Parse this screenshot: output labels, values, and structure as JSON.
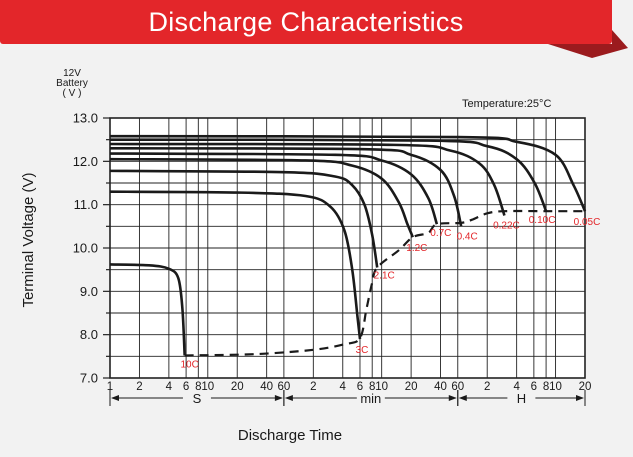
{
  "header": {
    "title": "Discharge Characteristics"
  },
  "colors": {
    "banner": "#e3262a",
    "fold": "#9b1b1e",
    "curve": "#1a1a1a",
    "label": "#e3262a",
    "grid": "#222222",
    "background": "#f2f2f2"
  },
  "chart_data": {
    "type": "line",
    "title": "",
    "ylabel": "Terminal Voltage (V)",
    "ylabel_unit_header": [
      "12V",
      "Battery",
      "( V )"
    ],
    "xlabel": "Discharge Time",
    "annotation": "Temperature:25°C",
    "ylim": [
      7.0,
      13.0
    ],
    "y_ticks": [
      "13.0",
      "12.0",
      "11.0",
      "10.0",
      "9.0",
      "8.0",
      "7.0"
    ],
    "x_tick_labels": [
      "1",
      "2",
      "4",
      "6",
      "8",
      "10",
      "20",
      "40",
      "60",
      "2",
      "4",
      "6",
      "8",
      "10",
      "20",
      "40",
      "60",
      "2",
      "4",
      "6",
      "8",
      "10",
      "20"
    ],
    "x_units": [
      "S",
      "min",
      "H"
    ],
    "grid": true,
    "legend": "none",
    "series": [
      {
        "name": "10C",
        "points": [
          [
            1.0,
            9.62
          ],
          [
            2.5,
            9.6
          ],
          [
            4.0,
            9.52
          ],
          [
            5.0,
            9.3
          ],
          [
            5.5,
            8.6
          ],
          [
            5.8,
            7.52
          ]
        ]
      },
      {
        "name": "3C",
        "points": [
          [
            1.0,
            11.3
          ],
          [
            20,
            11.28
          ],
          [
            100,
            11.2
          ],
          [
            180,
            10.95
          ],
          [
            250,
            10.4
          ],
          [
            300,
            9.5
          ],
          [
            340,
            8.4
          ],
          [
            360,
            7.9
          ]
        ]
      },
      {
        "name": "2.1C",
        "points": [
          [
            1.0,
            11.78
          ],
          [
            60,
            11.75
          ],
          [
            200,
            11.65
          ],
          [
            300,
            11.45
          ],
          [
            400,
            11.0
          ],
          [
            480,
            10.3
          ],
          [
            540,
            9.55
          ]
        ]
      },
      {
        "name": "1.2C",
        "points": [
          [
            1.0,
            12.05
          ],
          [
            100,
            12.02
          ],
          [
            300,
            11.9
          ],
          [
            600,
            11.6
          ],
          [
            900,
            11.05
          ],
          [
            1100,
            10.55
          ],
          [
            1250,
            10.25
          ]
        ]
      },
      {
        "name": "0.7C",
        "points": [
          [
            1.0,
            12.18
          ],
          [
            200,
            12.15
          ],
          [
            600,
            12.02
          ],
          [
            1200,
            11.7
          ],
          [
            1800,
            11.15
          ],
          [
            2200,
            10.55
          ]
        ]
      },
      {
        "name": "0.4C",
        "points": [
          [
            1.0,
            12.3
          ],
          [
            400,
            12.28
          ],
          [
            1200,
            12.15
          ],
          [
            2400,
            11.8
          ],
          [
            3300,
            11.2
          ],
          [
            3900,
            10.5
          ]
        ]
      },
      {
        "name": "0.22C",
        "points": [
          [
            1.0,
            12.4
          ],
          [
            800,
            12.38
          ],
          [
            3000,
            12.25
          ],
          [
            6000,
            11.95
          ],
          [
            8500,
            11.45
          ],
          [
            10800,
            10.75
          ]
        ]
      },
      {
        "name": "0.10C",
        "points": [
          [
            1.0,
            12.5
          ],
          [
            1800,
            12.48
          ],
          [
            7200,
            12.35
          ],
          [
            14400,
            12.05
          ],
          [
            22000,
            11.5
          ],
          [
            28800,
            10.85
          ]
        ]
      },
      {
        "name": "0.05C",
        "points": [
          [
            1.0,
            12.58
          ],
          [
            3600,
            12.56
          ],
          [
            14400,
            12.45
          ],
          [
            36000,
            12.15
          ],
          [
            55000,
            11.45
          ],
          [
            72000,
            10.85
          ]
        ]
      }
    ],
    "end_voltage_line": {
      "style": "dashed",
      "points": [
        [
          5.8,
          7.52
        ],
        [
          30,
          7.55
        ],
        [
          120,
          7.65
        ],
        [
          250,
          7.78
        ],
        [
          360,
          7.92
        ],
        [
          420,
          8.6
        ],
        [
          480,
          9.2
        ],
        [
          540,
          9.55
        ],
        [
          900,
          9.95
        ],
        [
          1250,
          10.25
        ],
        [
          1800,
          10.35
        ],
        [
          2200,
          10.55
        ],
        [
          3900,
          10.58
        ],
        [
          5000,
          10.65
        ],
        [
          7200,
          10.8
        ],
        [
          10800,
          10.85
        ],
        [
          28800,
          10.85
        ],
        [
          72000,
          10.85
        ]
      ]
    }
  }
}
